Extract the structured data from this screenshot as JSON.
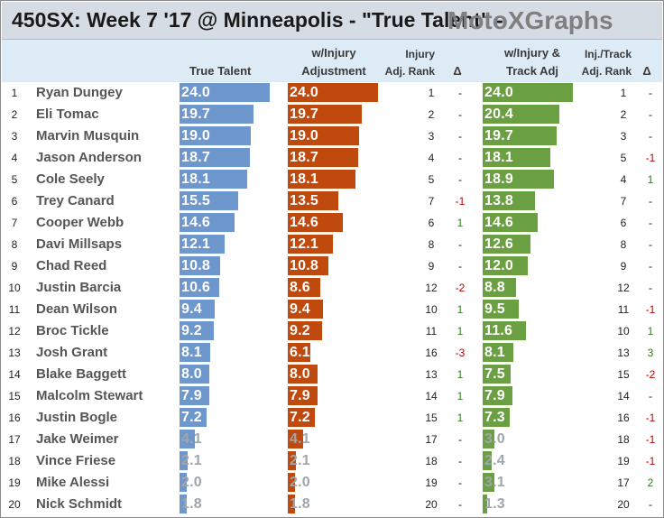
{
  "title": {
    "main": "450SX: Week 7 '17 @ Minneapolis - \"True Talent\" -",
    "brand": "MotoXGraphs"
  },
  "headers": {
    "true_talent": "True Talent",
    "injury_adj_line1": "w/Injury",
    "injury_adj_line2": "Adjustment",
    "injury_rank_line1": "Injury",
    "injury_rank_line2": "Adj. Rank",
    "delta1": "Δ",
    "track_adj_line1": "w/Injury &",
    "track_adj_line2": "Track Adj",
    "track_rank_line1": "Inj./Track",
    "track_rank_line2": "Adj. Rank",
    "delta2": "Δ"
  },
  "colors": {
    "true_talent": "#6e97ce",
    "injury_adj": "#c0490d",
    "track_adj": "#6ba042",
    "negative_delta": "#c00000",
    "positive_delta": "#2f7d1e"
  },
  "chart_data": {
    "type": "table",
    "title": "450SX: Week 7 '17 @ Minneapolis - \"True Talent\" - MotoXGraphs",
    "columns": [
      "Rank",
      "Rider",
      "True Talent",
      "w/Injury Adjustment",
      "Injury Adj. Rank",
      "Δ",
      "w/Injury & Track Adj",
      "Inj./Track Adj. Rank",
      "Δ"
    ],
    "bar_scale_max": 24.0,
    "rows": [
      {
        "rank": "1",
        "rider": "Ryan Dungey",
        "true_talent": "24.0",
        "injury_adj": "24.0",
        "injury_rank": "1",
        "injury_delta": "-",
        "track_adj": "24.0",
        "track_rank": "1",
        "track_delta": "-"
      },
      {
        "rank": "2",
        "rider": "Eli Tomac",
        "true_talent": "19.7",
        "injury_adj": "19.7",
        "injury_rank": "2",
        "injury_delta": "-",
        "track_adj": "20.4",
        "track_rank": "2",
        "track_delta": "-"
      },
      {
        "rank": "3",
        "rider": "Marvin Musquin",
        "true_talent": "19.0",
        "injury_adj": "19.0",
        "injury_rank": "3",
        "injury_delta": "-",
        "track_adj": "19.7",
        "track_rank": "3",
        "track_delta": "-"
      },
      {
        "rank": "4",
        "rider": "Jason Anderson",
        "true_talent": "18.7",
        "injury_adj": "18.7",
        "injury_rank": "4",
        "injury_delta": "-",
        "track_adj": "18.1",
        "track_rank": "5",
        "track_delta": "-1"
      },
      {
        "rank": "5",
        "rider": "Cole Seely",
        "true_talent": "18.1",
        "injury_adj": "18.1",
        "injury_rank": "5",
        "injury_delta": "-",
        "track_adj": "18.9",
        "track_rank": "4",
        "track_delta": "1"
      },
      {
        "rank": "6",
        "rider": "Trey Canard",
        "true_talent": "15.5",
        "injury_adj": "13.5",
        "injury_rank": "7",
        "injury_delta": "-1",
        "track_adj": "13.8",
        "track_rank": "7",
        "track_delta": "-"
      },
      {
        "rank": "7",
        "rider": "Cooper Webb",
        "true_talent": "14.6",
        "injury_adj": "14.6",
        "injury_rank": "6",
        "injury_delta": "1",
        "track_adj": "14.6",
        "track_rank": "6",
        "track_delta": "-"
      },
      {
        "rank": "8",
        "rider": "Davi Millsaps",
        "true_talent": "12.1",
        "injury_adj": "12.1",
        "injury_rank": "8",
        "injury_delta": "-",
        "track_adj": "12.6",
        "track_rank": "8",
        "track_delta": "-"
      },
      {
        "rank": "9",
        "rider": "Chad Reed",
        "true_talent": "10.8",
        "injury_adj": "10.8",
        "injury_rank": "9",
        "injury_delta": "-",
        "track_adj": "12.0",
        "track_rank": "9",
        "track_delta": "-"
      },
      {
        "rank": "10",
        "rider": "Justin Barcia",
        "true_talent": "10.6",
        "injury_adj": "8.6",
        "injury_rank": "12",
        "injury_delta": "-2",
        "track_adj": "8.8",
        "track_rank": "12",
        "track_delta": "-"
      },
      {
        "rank": "11",
        "rider": "Dean Wilson",
        "true_talent": "9.4",
        "injury_adj": "9.4",
        "injury_rank": "10",
        "injury_delta": "1",
        "track_adj": "9.5",
        "track_rank": "11",
        "track_delta": "-1"
      },
      {
        "rank": "12",
        "rider": "Broc Tickle",
        "true_talent": "9.2",
        "injury_adj": "9.2",
        "injury_rank": "11",
        "injury_delta": "1",
        "track_adj": "11.6",
        "track_rank": "10",
        "track_delta": "1"
      },
      {
        "rank": "13",
        "rider": "Josh Grant",
        "true_talent": "8.1",
        "injury_adj": "6.1",
        "injury_rank": "16",
        "injury_delta": "-3",
        "track_adj": "8.1",
        "track_rank": "13",
        "track_delta": "3"
      },
      {
        "rank": "14",
        "rider": "Blake Baggett",
        "true_talent": "8.0",
        "injury_adj": "8.0",
        "injury_rank": "13",
        "injury_delta": "1",
        "track_adj": "7.5",
        "track_rank": "15",
        "track_delta": "-2"
      },
      {
        "rank": "15",
        "rider": "Malcolm Stewart",
        "true_talent": "7.9",
        "injury_adj": "7.9",
        "injury_rank": "14",
        "injury_delta": "1",
        "track_adj": "7.9",
        "track_rank": "14",
        "track_delta": "-"
      },
      {
        "rank": "16",
        "rider": "Justin Bogle",
        "true_talent": "7.2",
        "injury_adj": "7.2",
        "injury_rank": "15",
        "injury_delta": "1",
        "track_adj": "7.3",
        "track_rank": "16",
        "track_delta": "-1"
      },
      {
        "rank": "17",
        "rider": "Jake Weimer",
        "true_talent": "4.1",
        "injury_adj": "4.1",
        "injury_rank": "17",
        "injury_delta": "-",
        "track_adj": "3.0",
        "track_rank": "18",
        "track_delta": "-1"
      },
      {
        "rank": "18",
        "rider": "Vince Friese",
        "true_talent": "2.1",
        "injury_adj": "2.1",
        "injury_rank": "18",
        "injury_delta": "-",
        "track_adj": "2.4",
        "track_rank": "19",
        "track_delta": "-1"
      },
      {
        "rank": "19",
        "rider": "Mike Alessi",
        "true_talent": "2.0",
        "injury_adj": "2.0",
        "injury_rank": "19",
        "injury_delta": "-",
        "track_adj": "3.1",
        "track_rank": "17",
        "track_delta": "2"
      },
      {
        "rank": "20",
        "rider": "Nick Schmidt",
        "true_talent": "1.8",
        "injury_adj": "1.8",
        "injury_rank": "20",
        "injury_delta": "-",
        "track_adj": "1.3",
        "track_rank": "20",
        "track_delta": "-"
      }
    ]
  }
}
